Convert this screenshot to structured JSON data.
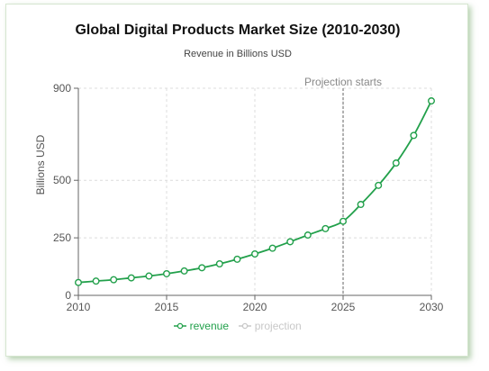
{
  "chart_data": {
    "type": "line",
    "title": "Global Digital Products Market Size (2010-2030)",
    "subtitle": "Revenue in Billions USD",
    "ylabel": "Billions USD",
    "xlabel": "",
    "xlim": [
      2010,
      2030
    ],
    "ylim": [
      0,
      900
    ],
    "y_ticks": [
      0,
      250,
      500,
      900
    ],
    "x_ticks": [
      2010,
      2015,
      2020,
      2025,
      2030
    ],
    "grid": true,
    "legend_position": "bottom",
    "annotation": {
      "label": "Projection starts",
      "x": 2025
    },
    "series": [
      {
        "name": "revenue",
        "color": "#22a04b",
        "x": [
          2010,
          2011,
          2012,
          2013,
          2014,
          2015,
          2016,
          2017,
          2018,
          2019,
          2020,
          2021,
          2022,
          2023,
          2024,
          2025,
          2026,
          2027,
          2028,
          2029,
          2030
        ],
        "values": [
          56,
          62,
          68,
          76,
          84,
          94,
          106,
          120,
          137,
          157,
          180,
          205,
          233,
          262,
          290,
          322,
          395,
          478,
          575,
          695,
          845
        ]
      },
      {
        "name": "projection",
        "color": "#bfbfbf",
        "x": [],
        "values": []
      }
    ]
  }
}
